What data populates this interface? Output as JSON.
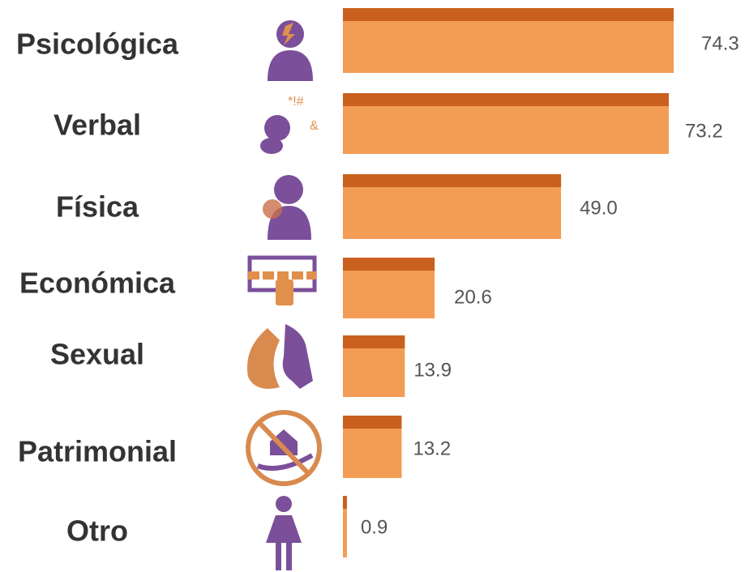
{
  "chart_data": {
    "type": "bar",
    "categories": [
      "Psicológica",
      "Verbal",
      "Física",
      "Económica",
      "Sexual",
      "Patrimonial",
      "Otro"
    ],
    "values": [
      74.3,
      73.2,
      49.0,
      20.6,
      13.9,
      13.2,
      0.9
    ],
    "value_labels": [
      "74.3",
      "73.2",
      "49.0",
      "20.6",
      "13.9",
      "13.2",
      "0.9"
    ],
    "color": "#f39c55",
    "top_color": "#c9601e"
  }
}
